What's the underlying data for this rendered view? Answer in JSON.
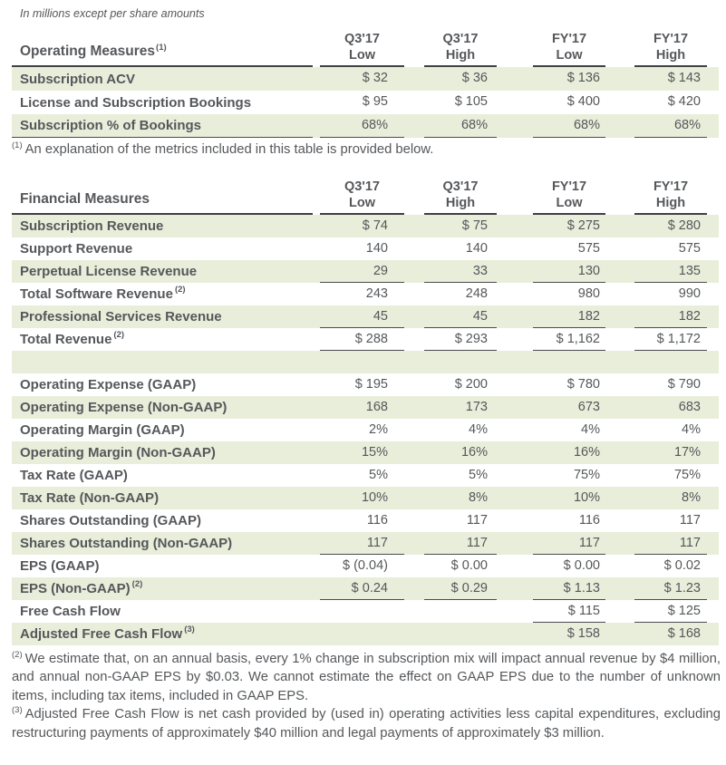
{
  "note_top": "In millions except per share amounts",
  "colors": {
    "row_shade": "#e8eeda",
    "text": "#55575a",
    "rule_dark": "#3f4144",
    "rule_light": "#4a4c4f"
  },
  "columns": [
    {
      "top": "Q3'17",
      "bottom": "Low"
    },
    {
      "top": "Q3'17",
      "bottom": "High"
    },
    {
      "top": "FY'17",
      "bottom": "Low"
    },
    {
      "top": "FY'17",
      "bottom": "High"
    }
  ],
  "operating_table": {
    "title": "Operating Measures",
    "title_sup": "(1)",
    "rows": [
      {
        "label": "Subscription ACV",
        "sup": "",
        "values": [
          "$ 32",
          "$ 36",
          "$ 136",
          "$ 143"
        ],
        "shaded": true,
        "ul": "none",
        "label_ul": false
      },
      {
        "label": "License and Subscription Bookings",
        "sup": "",
        "values": [
          "$ 95",
          "$ 105",
          "$ 400",
          "$ 420"
        ],
        "shaded": false,
        "ul": "none",
        "label_ul": false
      },
      {
        "label": "Subscription % of Bookings",
        "sup": "",
        "values": [
          "68%",
          "68%",
          "68%",
          "68%"
        ],
        "shaded": true,
        "ul": "all",
        "label_ul": true
      }
    ]
  },
  "financial_table": {
    "title": "Financial Measures",
    "title_sup": "",
    "rows": [
      {
        "label": "Subscription Revenue",
        "sup": "",
        "values": [
          "$ 74",
          "$ 75",
          "$ 275",
          "$ 280"
        ],
        "shaded": true,
        "ul": "none",
        "label_ul": false
      },
      {
        "label": "Support Revenue",
        "sup": "",
        "values": [
          "140",
          "140",
          "575",
          "575"
        ],
        "shaded": false,
        "ul": "none",
        "label_ul": false
      },
      {
        "label": "Perpetual License Revenue",
        "sup": "",
        "values": [
          "29",
          "33",
          "130",
          "135"
        ],
        "shaded": true,
        "ul": "all",
        "label_ul": false
      },
      {
        "label": "Total Software Revenue",
        "sup": "(2)",
        "values": [
          "243",
          "248",
          "980",
          "990"
        ],
        "shaded": false,
        "ul": "none",
        "label_ul": false
      },
      {
        "label": "Professional Services Revenue",
        "sup": "",
        "values": [
          "45",
          "45",
          "182",
          "182"
        ],
        "shaded": true,
        "ul": "all",
        "label_ul": false
      },
      {
        "label": "Total Revenue",
        "sup": "(2)",
        "values": [
          "$ 288",
          "$ 293",
          "$ 1,162",
          "$ 1,172"
        ],
        "shaded": false,
        "ul": "all",
        "label_ul": false
      },
      {
        "spacer": true,
        "shaded": true
      },
      {
        "label": "Operating Expense (GAAP)",
        "sup": "",
        "values": [
          "$ 195",
          "$ 200",
          "$ 780",
          "$ 790"
        ],
        "shaded": false,
        "ul": "none",
        "label_ul": false
      },
      {
        "label": "Operating Expense (Non-GAAP)",
        "sup": "",
        "values": [
          "168",
          "173",
          "673",
          "683"
        ],
        "shaded": true,
        "ul": "none",
        "label_ul": false
      },
      {
        "label": "Operating Margin (GAAP)",
        "sup": "",
        "values": [
          "2%",
          "4%",
          "4%",
          "4%"
        ],
        "shaded": false,
        "ul": "none",
        "label_ul": false
      },
      {
        "label": "Operating Margin (Non-GAAP)",
        "sup": "",
        "values": [
          "15%",
          "16%",
          "16%",
          "17%"
        ],
        "shaded": true,
        "ul": "none",
        "label_ul": false
      },
      {
        "label": "Tax Rate (GAAP)",
        "sup": "",
        "values": [
          "5%",
          "5%",
          "75%",
          "75%"
        ],
        "shaded": false,
        "ul": "none",
        "label_ul": false
      },
      {
        "label": "Tax Rate (Non-GAAP)",
        "sup": "",
        "values": [
          "10%",
          "8%",
          "10%",
          "8%"
        ],
        "shaded": true,
        "ul": "none",
        "label_ul": false
      },
      {
        "label": "Shares Outstanding (GAAP)",
        "sup": "",
        "values": [
          "116",
          "117",
          "116",
          "117"
        ],
        "shaded": false,
        "ul": "none",
        "label_ul": false
      },
      {
        "label": "Shares Outstanding (Non-GAAP)",
        "sup": "",
        "values": [
          "117",
          "117",
          "117",
          "117"
        ],
        "shaded": true,
        "ul": "all",
        "label_ul": false
      },
      {
        "label": "EPS (GAAP)",
        "sup": "",
        "values": [
          "$ (0.04)",
          "$ 0.00",
          "$ 0.00",
          "$ 0.02"
        ],
        "shaded": false,
        "ul": "none",
        "label_ul": false
      },
      {
        "label": "EPS (Non-GAAP)",
        "sup": "(2)",
        "values": [
          "$ 0.24",
          "$ 0.29",
          "$ 1.13",
          "$ 1.23"
        ],
        "shaded": true,
        "ul": "all",
        "label_ul": false
      },
      {
        "label": "Free Cash Flow",
        "sup": "",
        "values": [
          "",
          "",
          "$ 115",
          "$ 125"
        ],
        "shaded": false,
        "ul": "fy",
        "label_ul": false
      },
      {
        "label": "Adjusted Free Cash Flow",
        "sup": "(3)",
        "values": [
          "",
          "",
          "$ 158",
          "$ 168"
        ],
        "shaded": true,
        "ul": "none",
        "label_ul": false
      }
    ]
  },
  "footnotes": [
    {
      "marker": "(1)",
      "text": "An explanation of the metrics included in this table is provided below."
    },
    {
      "marker": "(2)",
      "text": "We estimate that, on an annual basis, every 1% change in subscription mix will impact annual revenue by $4 million, and annual non-GAAP EPS by $0.03.  We cannot estimate the effect on GAAP EPS due to the number of unknown items, including tax items, included in GAAP EPS."
    },
    {
      "marker": "(3)",
      "text": "Adjusted Free Cash Flow is net cash provided by (used in) operating activities less capital expenditures, excluding restructuring payments of approximately $40 million and legal payments of approximately $3 million."
    }
  ]
}
